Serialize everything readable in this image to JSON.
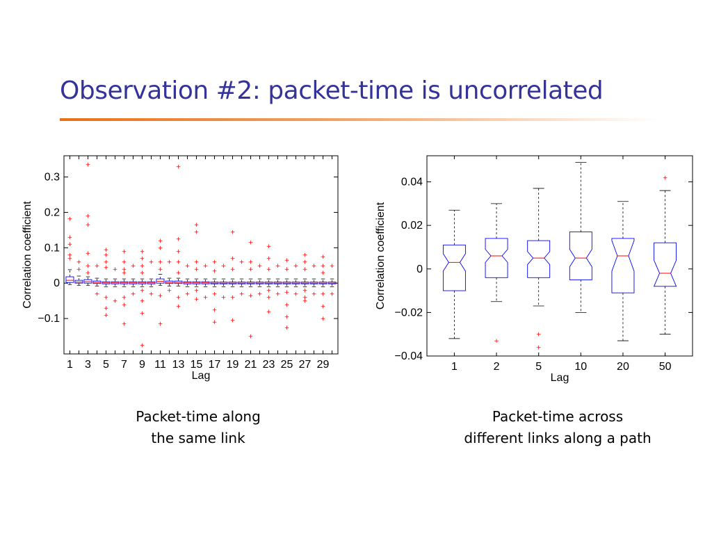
{
  "slide": {
    "title": "Observation #2: packet-time is uncorrelated",
    "accent_color": "#e8701a",
    "title_color": "#333399"
  },
  "captions": {
    "left": [
      "Packet-time along",
      "the same link"
    ],
    "right": [
      "Packet-time across",
      "different links along a path"
    ]
  },
  "chart_data": [
    {
      "type": "box",
      "title": "",
      "xlabel": "Lag",
      "ylabel": "Correlation coefficient",
      "ylim": [
        -0.2,
        0.36
      ],
      "yticks": [
        -0.1,
        0,
        0.1,
        0.2,
        0.3
      ],
      "ytick_labels": [
        "−0.1",
        "0",
        "0.1",
        "0.2",
        "0.3"
      ],
      "categories": [
        "1",
        "2",
        "3",
        "4",
        "5",
        "6",
        "7",
        "8",
        "9",
        "10",
        "11",
        "12",
        "13",
        "14",
        "15",
        "16",
        "17",
        "18",
        "19",
        "20",
        "21",
        "22",
        "23",
        "24",
        "25",
        "26",
        "27",
        "28",
        "29",
        "30"
      ],
      "xtick_labels": [
        "1",
        "3",
        "5",
        "7",
        "9",
        "11",
        "13",
        "15",
        "17",
        "19",
        "21",
        "23",
        "25",
        "27",
        "29"
      ],
      "box_color": "#0000ff",
      "median_color": "#ff0000",
      "outlier_color": "#ff0000",
      "boxes": [
        {
          "q1": 0.002,
          "median": 0.008,
          "q3": 0.018,
          "low": -0.004,
          "high": 0.038,
          "outliers": [
            0.182,
            0.13,
            0.11,
            0.08,
            0.07
          ]
        },
        {
          "q1": 0.0,
          "median": 0.003,
          "q3": 0.008,
          "low": -0.006,
          "high": 0.02,
          "outliers": [
            0.06,
            0.04
          ]
        },
        {
          "q1": 0.0,
          "median": 0.004,
          "q3": 0.01,
          "low": -0.006,
          "high": 0.018,
          "outliers": [
            0.335,
            0.19,
            0.165,
            0.085,
            0.05,
            0.03
          ]
        },
        {
          "q1": -0.001,
          "median": 0.002,
          "q3": 0.006,
          "low": -0.008,
          "high": 0.014,
          "outliers": [
            0.05,
            -0.03
          ]
        },
        {
          "q1": -0.002,
          "median": 0.001,
          "q3": 0.004,
          "low": -0.01,
          "high": 0.012,
          "outliers": [
            0.095,
            0.08,
            0.06,
            0.045,
            -0.04,
            -0.07,
            -0.09
          ]
        },
        {
          "q1": -0.002,
          "median": 0.001,
          "q3": 0.004,
          "low": -0.01,
          "high": 0.012,
          "outliers": [
            0.04,
            -0.05
          ]
        },
        {
          "q1": -0.002,
          "median": 0.001,
          "q3": 0.004,
          "low": -0.01,
          "high": 0.012,
          "outliers": [
            0.09,
            0.06,
            0.04,
            0.03,
            -0.04,
            -0.06,
            -0.115
          ]
        },
        {
          "q1": -0.002,
          "median": 0.001,
          "q3": 0.004,
          "low": -0.01,
          "high": 0.012,
          "outliers": [
            0.05,
            -0.03
          ]
        },
        {
          "q1": -0.002,
          "median": 0.001,
          "q3": 0.004,
          "low": -0.01,
          "high": 0.012,
          "outliers": [
            0.09,
            0.07,
            0.05,
            0.03,
            -0.02,
            -0.05,
            -0.085,
            -0.175
          ]
        },
        {
          "q1": -0.002,
          "median": 0.001,
          "q3": 0.004,
          "low": -0.01,
          "high": 0.012,
          "outliers": [
            0.06,
            -0.03
          ]
        },
        {
          "q1": 0.0,
          "median": 0.005,
          "q3": 0.012,
          "low": -0.006,
          "high": 0.025,
          "outliers": [
            0.12,
            0.1,
            0.06,
            0.04,
            -0.035,
            -0.115
          ]
        },
        {
          "q1": -0.001,
          "median": 0.002,
          "q3": 0.006,
          "low": -0.008,
          "high": 0.014,
          "outliers": [
            0.06,
            -0.02
          ]
        },
        {
          "q1": -0.001,
          "median": 0.002,
          "q3": 0.006,
          "low": -0.008,
          "high": 0.014,
          "outliers": [
            0.33,
            0.125,
            0.09,
            0.06,
            0.03,
            -0.04,
            -0.065
          ]
        },
        {
          "q1": -0.002,
          "median": 0.001,
          "q3": 0.004,
          "low": -0.01,
          "high": 0.012,
          "outliers": [
            0.05,
            -0.03
          ]
        },
        {
          "q1": -0.002,
          "median": 0.001,
          "q3": 0.004,
          "low": -0.01,
          "high": 0.012,
          "outliers": [
            0.165,
            0.145,
            0.06,
            0.04,
            -0.02,
            -0.045
          ]
        },
        {
          "q1": -0.002,
          "median": 0.001,
          "q3": 0.004,
          "low": -0.01,
          "high": 0.012,
          "outliers": [
            0.05,
            -0.04
          ]
        },
        {
          "q1": -0.002,
          "median": 0.0,
          "q3": 0.003,
          "low": -0.01,
          "high": 0.012,
          "outliers": [
            0.06,
            0.035,
            -0.03,
            -0.075,
            -0.11
          ]
        },
        {
          "q1": -0.002,
          "median": 0.0,
          "q3": 0.003,
          "low": -0.01,
          "high": 0.012,
          "outliers": [
            0.05,
            -0.04
          ]
        },
        {
          "q1": -0.002,
          "median": 0.0,
          "q3": 0.003,
          "low": -0.01,
          "high": 0.012,
          "outliers": [
            0.145,
            0.07,
            0.04,
            -0.04,
            -0.105
          ]
        },
        {
          "q1": -0.002,
          "median": 0.0,
          "q3": 0.003,
          "low": -0.01,
          "high": 0.012,
          "outliers": [
            0.06,
            -0.03
          ]
        },
        {
          "q1": -0.002,
          "median": 0.0,
          "q3": 0.003,
          "low": -0.01,
          "high": 0.012,
          "outliers": [
            0.115,
            0.06,
            0.04,
            -0.035,
            -0.15
          ]
        },
        {
          "q1": -0.002,
          "median": 0.0,
          "q3": 0.003,
          "low": -0.01,
          "high": 0.012,
          "outliers": [
            0.05,
            -0.03
          ]
        },
        {
          "q1": -0.002,
          "median": 0.0,
          "q3": 0.003,
          "low": -0.01,
          "high": 0.012,
          "outliers": [
            0.105,
            0.07,
            0.04,
            -0.02,
            -0.04,
            -0.08
          ]
        },
        {
          "q1": -0.002,
          "median": 0.0,
          "q3": 0.003,
          "low": -0.01,
          "high": 0.012,
          "outliers": [
            0.05,
            -0.03
          ]
        },
        {
          "q1": -0.002,
          "median": 0.0,
          "q3": 0.003,
          "low": -0.01,
          "high": 0.012,
          "outliers": [
            0.065,
            0.04,
            -0.025,
            -0.06,
            -0.095,
            -0.125
          ]
        },
        {
          "q1": -0.002,
          "median": 0.0,
          "q3": 0.003,
          "low": -0.01,
          "high": 0.012,
          "outliers": [
            0.05,
            -0.03
          ]
        },
        {
          "q1": -0.002,
          "median": 0.0,
          "q3": 0.003,
          "low": -0.01,
          "high": 0.012,
          "outliers": [
            0.08,
            0.06,
            0.04,
            -0.02,
            -0.04,
            -0.05
          ]
        },
        {
          "q1": -0.002,
          "median": 0.0,
          "q3": 0.003,
          "low": -0.01,
          "high": 0.012,
          "outliers": [
            0.05,
            -0.03
          ]
        },
        {
          "q1": -0.002,
          "median": 0.0,
          "q3": 0.003,
          "low": -0.01,
          "high": 0.012,
          "outliers": [
            0.075,
            0.05,
            0.03,
            -0.03,
            -0.065,
            -0.1
          ]
        },
        {
          "q1": -0.002,
          "median": 0.0,
          "q3": 0.003,
          "low": -0.01,
          "high": 0.012,
          "outliers": [
            0.05,
            -0.03
          ]
        }
      ]
    },
    {
      "type": "box",
      "title": "",
      "xlabel": "Lag",
      "ylabel": "Correlation coefficient",
      "ylim": [
        -0.04,
        0.052
      ],
      "yticks": [
        -0.04,
        -0.02,
        0,
        0.02,
        0.04
      ],
      "ytick_labels": [
        "−0.04",
        "−0.02",
        "0",
        "0.02",
        "0.04"
      ],
      "categories": [
        "1",
        "2",
        "5",
        "10",
        "20",
        "50"
      ],
      "notched": true,
      "box_color": "#0000ff",
      "median_color": "#ff0000",
      "outlier_color": "#ff0000",
      "boxes": [
        {
          "q1": -0.01,
          "median": 0.003,
          "q3": 0.011,
          "low": -0.032,
          "high": 0.027,
          "notch": 0.004,
          "outliers": []
        },
        {
          "q1": -0.004,
          "median": 0.006,
          "q3": 0.014,
          "low": -0.015,
          "high": 0.03,
          "notch": 0.003,
          "outliers": [
            -0.033
          ]
        },
        {
          "q1": -0.004,
          "median": 0.005,
          "q3": 0.013,
          "low": -0.017,
          "high": 0.037,
          "notch": 0.003,
          "outliers": [
            -0.03,
            -0.036
          ]
        },
        {
          "q1": -0.005,
          "median": 0.005,
          "q3": 0.017,
          "low": -0.02,
          "high": 0.049,
          "notch": 0.004,
          "outliers": []
        },
        {
          "q1": -0.011,
          "median": 0.006,
          "q3": 0.014,
          "low": -0.033,
          "high": 0.031,
          "notch": 0.007,
          "outliers": []
        },
        {
          "q1": -0.008,
          "median": -0.002,
          "q3": 0.012,
          "low": -0.03,
          "high": 0.036,
          "notch": 0.006,
          "outliers": [
            0.042
          ]
        }
      ]
    }
  ]
}
